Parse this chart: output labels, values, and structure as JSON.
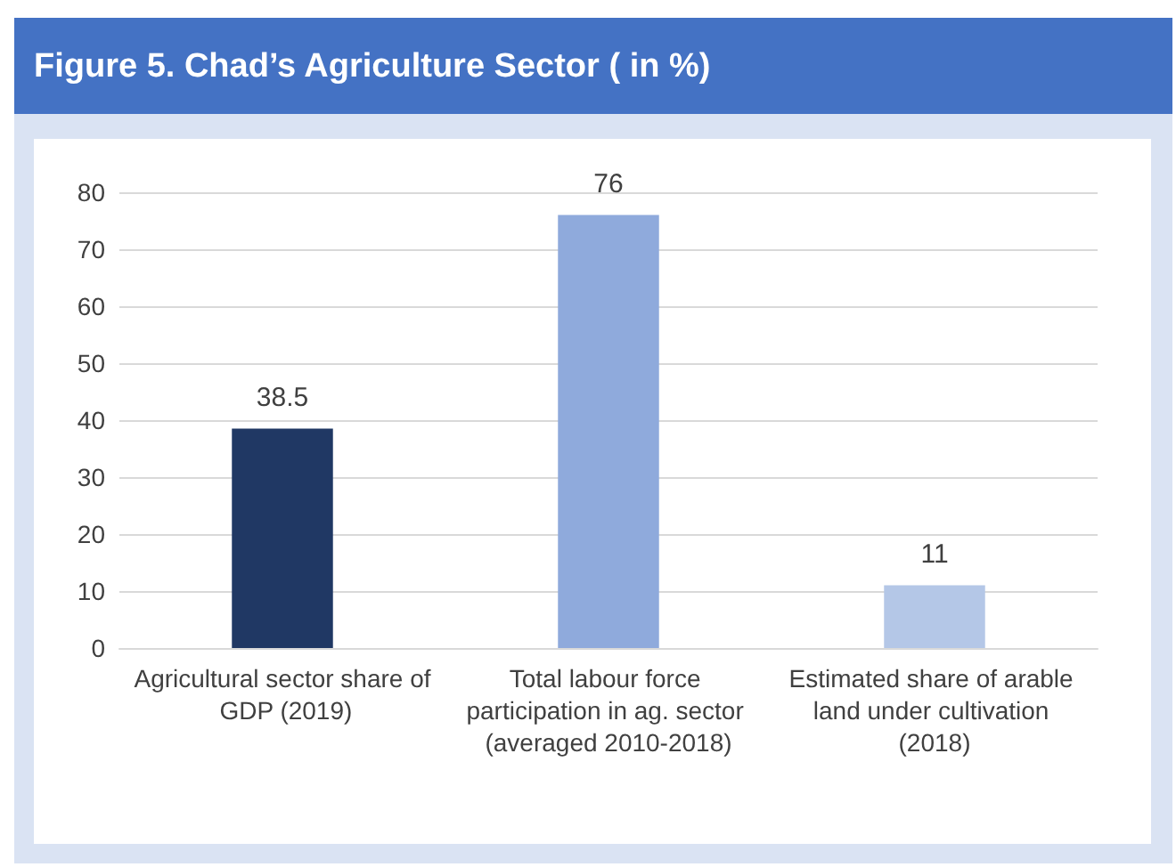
{
  "chart_data": {
    "type": "bar",
    "title": "Figure 5. Chad’s Agriculture Sector ( in %)",
    "categories": [
      "Agricultural sector share of GDP (2019)",
      "Total labour force participation in ag. sector (averaged 2010-2018)",
      "Estimated share of arable land under cultivation (2018)"
    ],
    "values": [
      38.5,
      76,
      11
    ],
    "colors": [
      "#203864",
      "#8faadc",
      "#b4c7e7"
    ],
    "ylim": [
      0,
      80
    ],
    "yticks": [
      0,
      10,
      20,
      30,
      40,
      50,
      60,
      70,
      80
    ],
    "grid": "y",
    "data_labels": true
  }
}
